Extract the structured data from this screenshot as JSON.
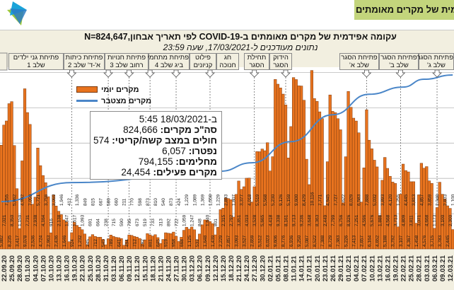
{
  "header": {
    "banner_text": "מית של מקרים מאומתים",
    "logo": "ministry-of-health-star-logo",
    "banner_color": "#c3d57c"
  },
  "chart_data": {
    "type": "bar",
    "title": "עקומה אפידמית של מקרים מאומתים ב-COVID-19 לפי תאריך אבחון,N=824,647",
    "subtitle": "נתונים מעודכנים ל-17/03/2021, שעה 23:59",
    "legend": {
      "placement": "top-left",
      "entries": [
        {
          "label": "מקרים יומי",
          "color": "#e8731e",
          "kind": "bar"
        },
        {
          "label": "מקרים מצטבר",
          "color": "#4a86c8",
          "kind": "line"
        }
      ]
    },
    "grid": true,
    "ylim": [
      0,
      10300
    ],
    "y_grid_step": 2000,
    "cumulative_ylim": [
      0,
      860000
    ],
    "first_bar_date": "21.09.20",
    "daily_cases": [
      5882,
      7021,
      7255,
      8235,
      8350,
      5862,
      3417,
      1159,
      4992,
      9078,
      7731,
      7059,
      2536,
      2938,
      5721,
      4724,
      4164,
      3756,
      2963,
      916,
      3069,
      2436,
      2138,
      1946,
      1646,
      1547,
      412,
      924,
      1517,
      1336,
      1232,
      1093,
      849,
      245,
      691,
      815,
      712,
      664,
      667,
      545,
      238,
      580,
      789,
      715,
      660,
      641,
      590,
      211,
      494,
      795,
      770,
      712,
      673,
      598,
      292,
      519,
      873,
      801,
      733,
      810,
      645,
      313,
      540,
      919,
      892,
      873,
      958,
      722,
      424,
      668,
      1059,
      1229,
      1125,
      1247,
      1089,
      532,
      848,
      1369,
      1648,
      1640,
      1558,
      1439,
      801,
      1229,
      2229,
      2315,
      2893,
      2857,
      2792,
      1807,
      3093,
      3851,
      3377,
      3527,
      4010,
      4018,
      2659,
      3528,
      5519,
      5512,
      5665,
      5568,
      6023,
      4418,
      5230,
      9606,
      9338,
      9126,
      8776,
      8161,
      5159,
      6936,
      9713,
      9600,
      9250,
      9236,
      8429,
      5087,
      3648,
      10116,
      8522,
      8363,
      7771,
      7388,
      2449,
      4945,
      8729,
      7799,
      7727,
      7383,
      6756,
      2622,
      5226,
      8926,
      8029,
      7413,
      7251,
      6583,
      2657,
      4596,
      7888,
      6164,
      5676,
      5032,
      4652,
      1888,
      3893,
      5188,
      4568,
      4120,
      3792,
      3713,
      1255,
      3107,
      4809,
      4445,
      4367,
      3811,
      3813,
      1458,
      3071,
      4857,
      4576,
      4668,
      3859,
      3715,
      1173,
      2348,
      3783,
      3100,
      2833,
      2445,
      2300,
      1100
    ],
    "cumulative": [
      {
        "date": "21.09.20",
        "value": 224000
      },
      {
        "date": "18.10.20",
        "value": 314000
      },
      {
        "date": "14.12.20",
        "value": 368000
      },
      {
        "date": "26.12.20",
        "value": 408000
      },
      {
        "date": "10.01.21",
        "value": 508000
      },
      {
        "date": "26.01.21",
        "value": 635000
      },
      {
        "date": "09.02.21",
        "value": 732000
      },
      {
        "date": "22.02.21",
        "value": 766000
      },
      {
        "date": "02.03.21",
        "value": 803000
      },
      {
        "date": "13.03.21",
        "value": 823000
      }
    ],
    "x_ticks": [
      "22.09.20",
      "25.09.20",
      "28.09.20",
      "01.10.20",
      "04.10.20",
      "07.10.20",
      "10.10.20",
      "13.10.20",
      "16.10.20",
      "19.10.20",
      "22.10.20",
      "25.10.20",
      "28.10.20",
      "31.10.20",
      "03.11.20",
      "06.11.20",
      "09.11.20",
      "12.11.20",
      "15.11.20",
      "18.11.20",
      "21.11.20",
      "24.11.20",
      "27.11.20",
      "30.11.20",
      "03.12.20",
      "06.12.20",
      "09.12.20",
      "12.12.20",
      "15.12.20",
      "18.12.20",
      "21.12.20",
      "24.12.20",
      "27.12.20",
      "30.12.20",
      "02.01.21",
      "05.01.21",
      "08.01.21",
      "11.01.21",
      "14.01.21",
      "17.01.21",
      "20.01.21",
      "23.01.21",
      "26.01.21",
      "29.01.21",
      "01.02.21",
      "04.02.21",
      "07.02.21",
      "10.02.21",
      "13.02.21",
      "16.02.21",
      "19.02.21",
      "22.02.21",
      "25.02.21",
      "28.02.21",
      "03.03.21",
      "06.03.21",
      "09.03.21",
      "12.03.21"
    ],
    "events": [
      {
        "date": "18.10.20",
        "lines": [
          "פתיחת גני ילדים",
          "שלב 1"
        ]
      },
      {
        "date": "01.11.20",
        "lines": [
          "פתיחת כיתות",
          "א'-ד' שלב 2"
        ]
      },
      {
        "date": "09.11.20",
        "lines": [
          "פתיחת חנויות",
          "רחוב שלב 3"
        ]
      },
      {
        "date": "17.11.20",
        "lines": [
          "פתיחת מתחמי",
          "ביג שלב 4"
        ]
      },
      {
        "date": "27.11.20",
        "lines": [
          "פילוט",
          "קניונים"
        ]
      },
      {
        "date": "10.12.20",
        "lines": [
          "חג",
          "חנוכה"
        ]
      },
      {
        "date": "27.12.20",
        "lines": [
          "תחילת",
          "הסגר"
        ]
      },
      {
        "date": "08.01.21",
        "lines": [
          "הידוק",
          "הסגר"
        ]
      },
      {
        "date": "08.02.21",
        "lines": [
          "פתיחת הסגר",
          "שלב א'"
        ]
      },
      {
        "date": "21.02.21",
        "lines": [
          "פתיחת הסגר",
          "שלב ב'"
        ]
      },
      {
        "date": "07.03.21",
        "lines": [
          "פתיחת הסגר",
          "שלב ג'"
        ]
      }
    ]
  },
  "tooltip": {
    "timestamp": "ב-18/03/2021 5:45",
    "rows": [
      {
        "label": "סה\"כ מקרים:",
        "value": "824,666"
      },
      {
        "label": "חולים במצב קשה/קריטי:",
        "value": "574"
      },
      {
        "label": "נפטרו:",
        "value": "6,057"
      },
      {
        "label": "מחלימים:",
        "value": "794,155"
      },
      {
        "label": "מקרים פעילים:",
        "value": "24,454"
      }
    ]
  }
}
